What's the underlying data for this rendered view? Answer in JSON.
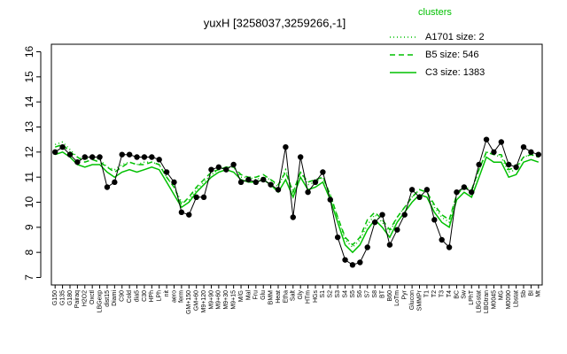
{
  "chart_data": {
    "type": "line",
    "title": "yuxH [3258037,3259266,-1]",
    "legend_title": "clusters",
    "legend_position": "top-right",
    "categories": [
      "G150",
      "G135",
      "G180",
      "Pairaq",
      "H2O2",
      "Oxctl",
      "LBGexp",
      "dist15",
      "Diami",
      "C90",
      "Cold",
      "dia5",
      "C30",
      "HPh",
      "LPh",
      "nit",
      "aero",
      "ferm",
      "GM+150",
      "GM+60",
      "M9+120",
      "M9+90",
      "M9+60",
      "M9+30",
      "M9+15",
      "M/G",
      "Mal",
      "Fru",
      "Glu",
      "BMM",
      "Heat",
      "Etha",
      "Salt",
      "Gly",
      "HTm",
      "HGs",
      "S1",
      "S2",
      "S3",
      "S4",
      "S5",
      "S6",
      "S7",
      "S8",
      "BT",
      "B60",
      "LoTm",
      "Pyr",
      "Glucon",
      "SMMPr",
      "T1",
      "T2",
      "T3",
      "T4",
      "BC",
      "Sw",
      "LPhT",
      "LBGstat",
      "LBGtran",
      "M0045",
      "MG",
      "M0090",
      "Lbstat",
      "Sb",
      "BI",
      "Mt"
    ],
    "gene": {
      "color": "#000000",
      "values": [
        12.0,
        12.2,
        11.9,
        11.6,
        11.8,
        11.8,
        11.8,
        10.6,
        10.8,
        11.9,
        11.9,
        11.8,
        11.8,
        11.8,
        11.7,
        11.2,
        10.8,
        9.6,
        9.5,
        10.2,
        10.2,
        11.3,
        11.4,
        11.3,
        11.5,
        10.8,
        10.9,
        10.8,
        10.9,
        10.7,
        10.5,
        12.2,
        9.4,
        11.8,
        10.4,
        10.8,
        11.2,
        10.1,
        8.6,
        7.7,
        7.5,
        7.6,
        8.2,
        9.2,
        9.5,
        8.3,
        8.9,
        9.5,
        10.5,
        10.2,
        10.5,
        9.3,
        8.5,
        8.2,
        10.4,
        10.6,
        10.4,
        11.5,
        12.5,
        12.0,
        12.4,
        11.5,
        11.4,
        12.2,
        12.0,
        11.9
      ]
    },
    "series": [
      {
        "name": "A1701 size: 2",
        "color": "#00c000",
        "dash": "1,3",
        "values": [
          12.3,
          12.4,
          12.1,
          11.8,
          11.7,
          11.8,
          11.7,
          11.4,
          11.3,
          11.5,
          11.6,
          11.5,
          11.6,
          11.6,
          11.5,
          11.0,
          10.6,
          10.0,
          10.1,
          10.5,
          10.8,
          11.1,
          11.3,
          11.4,
          11.4,
          11.0,
          11.0,
          10.9,
          11.0,
          10.9,
          10.6,
          11.3,
          10.4,
          11.2,
          10.7,
          10.8,
          11.0,
          10.3,
          9.4,
          8.5,
          8.2,
          8.5,
          9.1,
          9.5,
          9.2,
          8.8,
          9.4,
          9.8,
          10.2,
          10.5,
          10.4,
          9.8,
          9.4,
          9.2,
          10.3,
          10.6,
          10.4,
          11.3,
          12.0,
          11.9,
          11.8,
          11.2,
          11.3,
          11.8,
          11.9,
          11.8
        ]
      },
      {
        "name": "B5 size: 546",
        "color": "#00c000",
        "dash": "6,4",
        "values": [
          12.2,
          12.3,
          12.0,
          11.8,
          11.6,
          11.7,
          11.6,
          11.4,
          11.2,
          11.4,
          11.6,
          11.5,
          11.5,
          11.6,
          11.5,
          11.0,
          10.6,
          9.9,
          10.2,
          10.6,
          10.9,
          11.2,
          11.3,
          11.4,
          11.4,
          11.1,
          11.0,
          11.0,
          11.1,
          10.9,
          10.7,
          11.2,
          10.4,
          11.2,
          10.8,
          10.9,
          11.0,
          10.3,
          9.4,
          8.6,
          8.3,
          8.6,
          9.3,
          9.6,
          9.3,
          8.9,
          9.4,
          9.8,
          10.2,
          10.5,
          10.4,
          9.9,
          9.5,
          9.3,
          10.3,
          10.6,
          10.5,
          11.3,
          12.0,
          11.9,
          11.9,
          11.3,
          11.4,
          11.8,
          11.9,
          11.8
        ]
      },
      {
        "name": "C3 size: 1383",
        "color": "#00c000",
        "dash": "none",
        "values": [
          11.9,
          12.0,
          11.8,
          11.5,
          11.4,
          11.5,
          11.5,
          11.2,
          11.0,
          11.2,
          11.3,
          11.2,
          11.3,
          11.4,
          11.3,
          10.8,
          10.3,
          9.8,
          10.0,
          10.4,
          10.7,
          11.0,
          11.2,
          11.3,
          11.2,
          10.9,
          10.8,
          10.8,
          10.9,
          10.7,
          10.4,
          10.9,
          10.2,
          11.0,
          10.5,
          10.6,
          10.8,
          10.1,
          9.2,
          8.3,
          8.0,
          8.3,
          8.9,
          9.3,
          9.0,
          8.6,
          9.2,
          9.6,
          10.0,
          10.3,
          10.2,
          9.6,
          9.2,
          9.0,
          10.1,
          10.4,
          10.2,
          11.0,
          11.8,
          11.6,
          11.6,
          11.0,
          11.1,
          11.6,
          11.7,
          11.6
        ]
      }
    ],
    "ylim": [
      6.7,
      16.3
    ],
    "yticks": [
      7,
      8,
      9,
      10,
      11,
      12,
      13,
      14,
      15,
      16
    ]
  }
}
